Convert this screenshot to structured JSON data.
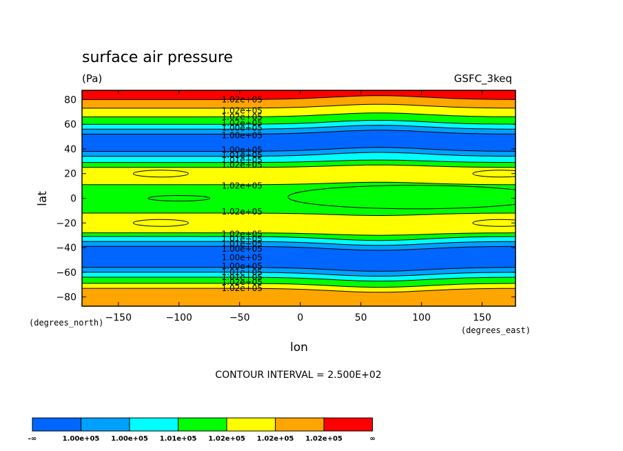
{
  "chart_data": {
    "type": "heatmap",
    "title": "surface air pressure",
    "units": "(Pa)",
    "source_label": "GSFC_3keq",
    "xlabel": "lon",
    "ylabel": "lat",
    "x_unit_label": "(degrees_east)",
    "y_unit_label": "(degrees_north)",
    "xlim": [
      -180,
      177.5
    ],
    "ylim": [
      -87.5,
      87.5
    ],
    "x_ticks": [
      -150,
      -100,
      -50,
      0,
      50,
      100,
      150
    ],
    "x_tick_labels": [
      "−150",
      "−100",
      "−50",
      "0",
      "50",
      "100",
      "150"
    ],
    "y_ticks": [
      80,
      60,
      40,
      20,
      0,
      -20,
      -40,
      -60,
      -80
    ],
    "y_tick_labels": [
      "80",
      "60",
      "40",
      "20",
      "0",
      "−20",
      "−40",
      "−60",
      "−80"
    ],
    "contour_interval_text": "CONTOUR INTERVAL = 2.500E+02",
    "contour_labels": [
      {
        "lat": 80,
        "text": "1.02e+05"
      },
      {
        "lat": 71,
        "text": "1.02e+05"
      },
      {
        "lat": 66,
        "text": "1.02e+05"
      },
      {
        "lat": 61,
        "text": "1.02e+05"
      },
      {
        "lat": 57,
        "text": "1.00e+05"
      },
      {
        "lat": 51,
        "text": "1.00e+05"
      },
      {
        "lat": 39,
        "text": "1.00e+05"
      },
      {
        "lat": 35,
        "text": "1.01e+05"
      },
      {
        "lat": 31,
        "text": "1.01e+05"
      },
      {
        "lat": 27,
        "text": "1.02e+05"
      },
      {
        "lat": 10,
        "text": "1.02e+05"
      },
      {
        "lat": -11,
        "text": "1.02e+05"
      },
      {
        "lat": -29,
        "text": "1.02e+05"
      },
      {
        "lat": -33,
        "text": "1.01e+05"
      },
      {
        "lat": -37,
        "text": "1.01e+05"
      },
      {
        "lat": -41,
        "text": "1.00e+05"
      },
      {
        "lat": -48,
        "text": "1.00e+05"
      },
      {
        "lat": -55,
        "text": "1.00e+05"
      },
      {
        "lat": -60,
        "text": "1.01e+05"
      },
      {
        "lat": -64,
        "text": "1.01e+05"
      },
      {
        "lat": -68,
        "text": "1.02e+05"
      },
      {
        "lat": -73,
        "text": "1.02e+05"
      }
    ],
    "bands": [
      {
        "lat": [
          87.5,
          80
        ],
        "color": "#ff0000"
      },
      {
        "lat": [
          80,
          73
        ],
        "color": "#ffa500"
      },
      {
        "lat": [
          73,
          66
        ],
        "color": "#ffff00"
      },
      {
        "lat": [
          66,
          60
        ],
        "color": "#00ff00"
      },
      {
        "lat": [
          60,
          56
        ],
        "color": "#00ffff"
      },
      {
        "lat": [
          56,
          52
        ],
        "color": "#00a0ff"
      },
      {
        "lat": [
          52,
          38
        ],
        "color": "#0066ff"
      },
      {
        "lat": [
          38,
          34
        ],
        "color": "#00a0ff"
      },
      {
        "lat": [
          34,
          29
        ],
        "color": "#00ffff"
      },
      {
        "lat": [
          29,
          25
        ],
        "color": "#00ff00"
      },
      {
        "lat": [
          25,
          11
        ],
        "color": "#ffff00"
      },
      {
        "lat": [
          11,
          -12
        ],
        "color": "#00ff00"
      },
      {
        "lat": [
          -12,
          -28
        ],
        "color": "#ffff00"
      },
      {
        "lat": [
          -28,
          -31
        ],
        "color": "#00ff00"
      },
      {
        "lat": [
          -31,
          -35
        ],
        "color": "#00ffff"
      },
      {
        "lat": [
          -35,
          -39
        ],
        "color": "#00a0ff"
      },
      {
        "lat": [
          -39,
          -56
        ],
        "color": "#0066ff"
      },
      {
        "lat": [
          -56,
          -60
        ],
        "color": "#00a0ff"
      },
      {
        "lat": [
          -60,
          -64
        ],
        "color": "#00ffff"
      },
      {
        "lat": [
          -64,
          -69
        ],
        "color": "#00ff00"
      },
      {
        "lat": [
          -69,
          -73
        ],
        "color": "#ffff00"
      },
      {
        "lat": [
          -73,
          -87.5
        ],
        "color": "#ffa500"
      }
    ],
    "colorbar": {
      "colors": [
        "#0066ff",
        "#00a0ff",
        "#00ffff",
        "#00ff00",
        "#ffff00",
        "#ffa500",
        "#ff0000"
      ],
      "labels": [
        "-∞",
        "1.00e+05",
        "1.00e+05",
        "1.01e+05",
        "1.02e+05",
        "1.02e+05",
        "1.02e+05",
        "∞"
      ]
    },
    "grid": false
  }
}
